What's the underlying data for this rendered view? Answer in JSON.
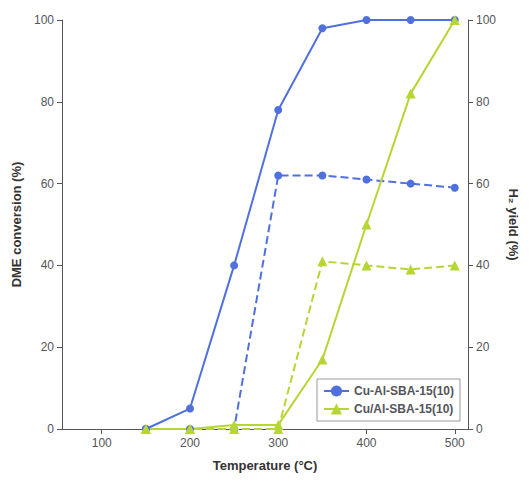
{
  "chart_data": {
    "type": "line",
    "x": [
      150,
      200,
      250,
      300,
      350,
      400,
      450,
      500
    ],
    "series": [
      {
        "name": "Cu-Al-SBA-15(10)",
        "values": [
          0,
          5,
          40,
          78,
          98,
          100,
          100,
          100
        ],
        "marker": "circle",
        "line_style": "solid"
      },
      {
        "name": "Cu-Al-SBA-15(10)",
        "values": [
          0,
          0,
          0,
          62,
          62,
          61,
          60,
          59
        ],
        "axis": "y2",
        "marker": "circle",
        "line_style": "dashed"
      },
      {
        "name": "Cu/Al-SBA-15(10)",
        "values": [
          0,
          0,
          1,
          1,
          17,
          50,
          82,
          100
        ],
        "marker": "triangle",
        "line_style": "solid"
      },
      {
        "name": "Cu/Al-SBA-15(10)",
        "values": [
          0,
          0,
          0,
          0,
          41,
          40,
          39,
          40
        ],
        "axis": "y2",
        "marker": "triangle",
        "line_style": "dashed"
      }
    ],
    "xlabel": "Temperature (°C)",
    "ylabel": "DME conversion (%)",
    "y2label": "H₂ yield (%)",
    "xlim": [
      55,
      515
    ],
    "xticks": [
      100,
      200,
      300,
      400,
      500
    ],
    "ylim": [
      0,
      100
    ],
    "yticks": [
      0,
      20,
      40,
      60,
      80,
      100
    ],
    "y2lim": [
      0,
      100
    ],
    "y2ticks": [
      0,
      20,
      40,
      60,
      80,
      100
    ],
    "grid": false,
    "legend": "lower right"
  }
}
